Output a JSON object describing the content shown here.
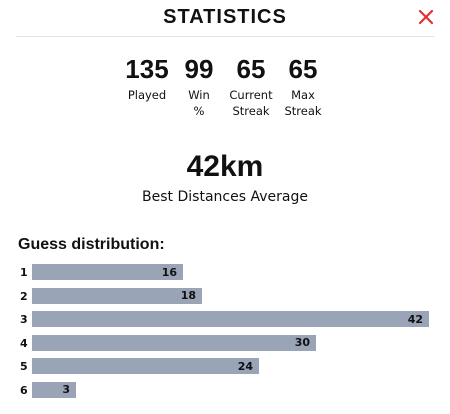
{
  "header": {
    "title": "STATISTICS",
    "close_icon": "close-icon",
    "close_color": "#e03131"
  },
  "stats": [
    {
      "value": "135",
      "label": "Played"
    },
    {
      "value": "99",
      "label": "Win\n%"
    },
    {
      "value": "65",
      "label": "Current\nStreak"
    },
    {
      "value": "65",
      "label": "Max\nStreak"
    }
  ],
  "distance": {
    "value": "42km",
    "label": "Best Distances Average"
  },
  "distribution": {
    "title": "Guess distribution:",
    "bar_color": "#9aa4b7",
    "rows": [
      {
        "guess": "1",
        "count": 16
      },
      {
        "guess": "2",
        "count": 18
      },
      {
        "guess": "3",
        "count": 42
      },
      {
        "guess": "4",
        "count": 30
      },
      {
        "guess": "5",
        "count": 24
      },
      {
        "guess": "6",
        "count": 3
      }
    ]
  }
}
